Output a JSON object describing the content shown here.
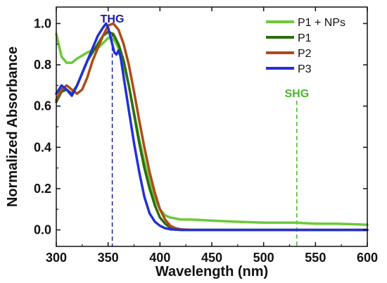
{
  "chart_data": {
    "type": "line",
    "xlabel": "Wavelength (nm)",
    "ylabel": "Normalized Absorbance",
    "xlim": [
      300,
      600
    ],
    "ylim": [
      -0.08,
      1.08
    ],
    "x_ticks": [
      300,
      350,
      400,
      450,
      500,
      550,
      600
    ],
    "y_ticks": [
      0.0,
      0.2,
      0.4,
      0.6,
      0.8,
      1.0
    ],
    "x_tick_labels": [
      "300",
      "350",
      "400",
      "450",
      "500",
      "550",
      "600"
    ],
    "y_tick_labels": [
      "0.0",
      "0.2",
      "0.4",
      "0.6",
      "0.8",
      "1.0"
    ],
    "grid": false,
    "legend_position": "top-right",
    "series": [
      {
        "name": "P1 + NPs",
        "color": "#6cc93a",
        "x": [
          300,
          305,
          310,
          315,
          320,
          330,
          340,
          350,
          355,
          360,
          365,
          370,
          375,
          380,
          385,
          390,
          395,
          400,
          405,
          410,
          415,
          420,
          430,
          450,
          470,
          500,
          530,
          550,
          570,
          600
        ],
        "y": [
          0.95,
          0.84,
          0.81,
          0.81,
          0.83,
          0.86,
          0.88,
          0.93,
          0.93,
          0.88,
          0.8,
          0.7,
          0.57,
          0.44,
          0.33,
          0.23,
          0.15,
          0.1,
          0.07,
          0.06,
          0.055,
          0.05,
          0.05,
          0.045,
          0.04,
          0.035,
          0.035,
          0.03,
          0.03,
          0.025
        ]
      },
      {
        "name": "P1",
        "color": "#2c6e10",
        "x": [
          300,
          305,
          310,
          315,
          320,
          325,
          330,
          335,
          340,
          345,
          350,
          355,
          360,
          365,
          370,
          375,
          380,
          385,
          390,
          395,
          400,
          405,
          410,
          415,
          420,
          430,
          450,
          500,
          550,
          600
        ],
        "y": [
          0.62,
          0.67,
          0.68,
          0.66,
          0.7,
          0.76,
          0.82,
          0.86,
          0.9,
          0.94,
          0.96,
          0.95,
          0.9,
          0.82,
          0.7,
          0.56,
          0.42,
          0.3,
          0.2,
          0.12,
          0.06,
          0.03,
          0.01,
          0.005,
          0.0,
          0.0,
          0.0,
          0.0,
          0.0,
          0.0
        ]
      },
      {
        "name": "P2",
        "color": "#b04a17",
        "x": [
          300,
          305,
          310,
          315,
          320,
          325,
          330,
          335,
          340,
          345,
          350,
          355,
          360,
          365,
          370,
          375,
          380,
          385,
          390,
          395,
          400,
          405,
          410,
          415,
          420,
          430,
          450,
          500,
          550,
          600
        ],
        "y": [
          0.63,
          0.68,
          0.7,
          0.68,
          0.66,
          0.68,
          0.74,
          0.82,
          0.88,
          0.94,
          0.99,
          1.0,
          0.97,
          0.9,
          0.8,
          0.67,
          0.53,
          0.4,
          0.28,
          0.18,
          0.1,
          0.05,
          0.02,
          0.008,
          0.003,
          0.0,
          0.0,
          0.0,
          0.0,
          0.0
        ]
      },
      {
        "name": "P3",
        "color": "#2230d6",
        "x": [
          300,
          305,
          310,
          315,
          320,
          325,
          330,
          335,
          340,
          345,
          348,
          350,
          353,
          356,
          358,
          360,
          362,
          365,
          370,
          375,
          380,
          385,
          390,
          395,
          400,
          405,
          410,
          420,
          450,
          500,
          550,
          600
        ],
        "y": [
          0.66,
          0.7,
          0.68,
          0.65,
          0.7,
          0.76,
          0.82,
          0.88,
          0.94,
          0.98,
          1.0,
          0.98,
          0.92,
          0.86,
          0.85,
          0.87,
          0.84,
          0.74,
          0.58,
          0.42,
          0.28,
          0.16,
          0.08,
          0.04,
          0.02,
          0.008,
          0.003,
          0.0,
          0.0,
          0.0,
          0.0,
          0.0
        ]
      }
    ],
    "annotations": [
      {
        "text": "THG",
        "x": 354,
        "color": "#1a1a9c"
      },
      {
        "text": "SHG",
        "x": 532,
        "color": "#49b62a"
      }
    ]
  }
}
